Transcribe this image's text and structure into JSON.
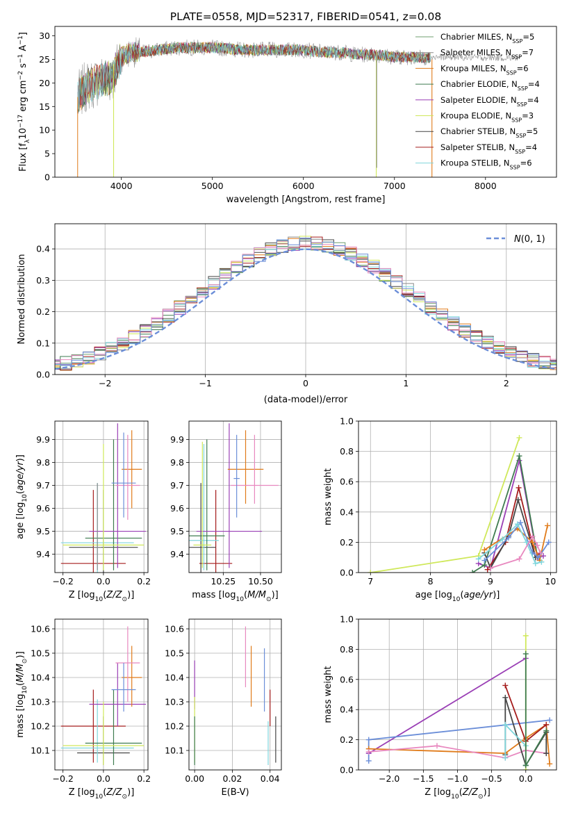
{
  "figure": {
    "title": "PLATE=0558, MJD=52317, FIBERID=0541, z=0.08"
  },
  "colors": {
    "Chabrier MILES": "#6f9f6f",
    "Salpeter MILES": "#8a8a8a",
    "Kroupa MILES": "#e07b1a",
    "Chabrier ELODIE": "#3e7b4f",
    "Salpeter ELODIE": "#9a3fb5",
    "Kroupa ELODIE": "#cfe85a",
    "Chabrier STELIB": "#444444",
    "Salpeter STELIB": "#a51c1c",
    "Kroupa STELIB": "#7fd6dc",
    "pink": "#e888bf",
    "blue": "#6b8ed8",
    "grid": "#b0b0b0"
  },
  "chart_data": [
    {
      "id": "spectrum",
      "type": "line",
      "xlabel": "wavelength [Angstrom, rest frame]",
      "ylabel": "Flux [f_λ 10^-17 erg cm^-2 s^-1 A^-1]",
      "xlim": [
        3270,
        8780
      ],
      "ylim": [
        0,
        32
      ],
      "xticks": [
        4000,
        5000,
        6000,
        7000,
        8000
      ],
      "yticks": [
        0,
        5,
        10,
        15,
        20,
        25,
        30
      ],
      "grid": false,
      "legend_position": "top-right",
      "legend": [
        {
          "name": "Chabrier MILES",
          "nssp": "5"
        },
        {
          "name": "Salpeter MILES",
          "nssp": "7"
        },
        {
          "name": "Kroupa MILES",
          "nssp": "6"
        },
        {
          "name": "Chabrier ELODIE",
          "nssp": "4"
        },
        {
          "name": "Salpeter ELODIE",
          "nssp": "4"
        },
        {
          "name": "Kroupa ELODIE",
          "nssp": "3"
        },
        {
          "name": "Chabrier STELIB",
          "nssp": "5"
        },
        {
          "name": "Salpeter STELIB",
          "nssp": "4"
        },
        {
          "name": "Kroupa STELIB",
          "nssp": "6"
        }
      ],
      "continuum": {
        "x": [
          3520,
          3600,
          3700,
          3800,
          3900,
          4000,
          4100,
          4200,
          4400,
          4600,
          4800,
          5000,
          5200,
          5400,
          5600,
          5800,
          6000,
          6200,
          6400,
          6600,
          6800,
          7000,
          7200,
          7400
        ],
        "y": [
          17,
          19,
          20,
          21,
          21,
          25.5,
          26.5,
          26.5,
          27,
          27.5,
          27.5,
          27.5,
          27.2,
          27,
          27,
          27,
          27,
          26.5,
          26.5,
          26,
          26,
          25.5,
          25.5,
          25.3
        ]
      },
      "grey_extension": {
        "x": [
          7400,
          8400
        ],
        "y": [
          25.5,
          25.3
        ]
      },
      "spikes": [
        {
          "series": "Kroupa ELODIE",
          "x": 3915,
          "y_from": 24,
          "y_to": 0
        },
        {
          "series": "Kroupa ELODIE",
          "x": 6800,
          "y_from": 27,
          "y_to": 0
        },
        {
          "series": "Salpeter MILES",
          "x": 6805,
          "y_from": 27,
          "y_to": 2
        },
        {
          "series": "Kroupa MILES",
          "x": 7412,
          "y_from": 25,
          "y_to": 0
        }
      ]
    },
    {
      "id": "residuals",
      "type": "line",
      "xlabel": "(data-model)/error",
      "ylabel": "Normed distribution",
      "xlim": [
        -2.5,
        2.5
      ],
      "ylim": [
        0,
        0.48
      ],
      "xticks": [
        -2,
        -1,
        0,
        1,
        2
      ],
      "yticks": [
        0.0,
        0.1,
        0.2,
        0.3,
        0.4
      ],
      "grid": true,
      "legend_position": "top-right",
      "legend_label": "N(0,1)",
      "gaussian": {
        "mean": 0,
        "sigma": 1
      }
    },
    {
      "id": "age_vs_Z",
      "type": "scatter",
      "xlabel": "Z [log10(Z/Z_sun)]",
      "ylabel": "age [log10(age/yr)]",
      "xlim": [
        -0.24,
        0.22
      ],
      "ylim": [
        9.32,
        9.98
      ],
      "xticks": [
        -0.2,
        0.0,
        0.2
      ],
      "yticks": [
        9.4,
        9.5,
        9.6,
        9.7,
        9.8,
        9.9
      ],
      "grid": true,
      "points": [
        {
          "series": "Salpeter STELIB",
          "x": -0.05,
          "xerr": 0.16,
          "y": 9.36,
          "ylo": 9.31,
          "yhi": 9.68
        },
        {
          "series": "Chabrier STELIB",
          "x": 0.0,
          "xerr": 0.17,
          "y": 9.43,
          "ylo": 9.32,
          "yhi": 9.68
        },
        {
          "series": "Kroupa STELIB",
          "x": -0.03,
          "xerr": 0.18,
          "y": 9.45,
          "ylo": 9.32,
          "yhi": 9.71
        },
        {
          "series": "Chabrier ELODIE",
          "x": 0.05,
          "xerr": 0.14,
          "y": 9.47,
          "ylo": 9.33,
          "yhi": 9.9
        },
        {
          "series": "Salpeter ELODIE",
          "x": 0.07,
          "xerr": 0.14,
          "y": 9.5,
          "ylo": 9.34,
          "yhi": 9.97
        },
        {
          "series": "Kroupa ELODIE",
          "x": 0.0,
          "xerr": 0.2,
          "y": 9.44,
          "ylo": 9.33,
          "yhi": 9.88
        },
        {
          "series": "Kroupa MILES",
          "x": 0.14,
          "xerr": 0.05,
          "y": 9.77,
          "ylo": 9.6,
          "yhi": 9.94
        },
        {
          "series": "pink",
          "x": 0.12,
          "xerr": 0.06,
          "y": 9.7,
          "ylo": 9.55,
          "yhi": 9.92
        },
        {
          "series": "blue",
          "x": 0.1,
          "xerr": 0.06,
          "y": 9.71,
          "ylo": 9.56,
          "yhi": 9.93
        },
        {
          "series": "Salpeter MILES",
          "x": -0.03,
          "xerr": 0.02,
          "y": 9.43,
          "ylo": 9.33,
          "yhi": 9.71
        }
      ]
    },
    {
      "id": "age_vs_mass",
      "type": "scatter",
      "xlabel": "mass [log10(M/M_sun)]",
      "ylabel": "",
      "xlim": [
        10.02,
        10.64
      ],
      "ylim": [
        9.32,
        9.98
      ],
      "xticks": [
        10.25,
        10.5
      ],
      "yticks": [
        9.4,
        9.5,
        9.6,
        9.7,
        9.8,
        9.9
      ],
      "grid": true,
      "points": [
        {
          "series": "Salpeter STELIB",
          "x": 10.2,
          "xerr": 0.11,
          "y": 9.36,
          "ylo": 9.31,
          "yhi": 9.68
        },
        {
          "series": "Chabrier STELIB",
          "x": 10.1,
          "xerr": 0.1,
          "y": 9.43,
          "ylo": 9.32,
          "yhi": 9.71
        },
        {
          "series": "Kroupa STELIB",
          "x": 10.12,
          "xerr": 0.1,
          "y": 9.46,
          "ylo": 9.33,
          "yhi": 9.88
        },
        {
          "series": "Chabrier ELODIE",
          "x": 10.14,
          "xerr": 0.12,
          "y": 9.48,
          "ylo": 9.33,
          "yhi": 9.9
        },
        {
          "series": "Salpeter ELODIE",
          "x": 10.29,
          "xerr": 0.22,
          "y": 9.5,
          "ylo": 9.34,
          "yhi": 9.97
        },
        {
          "series": "Kroupa ELODIE",
          "x": 10.11,
          "xerr": 0.06,
          "y": 9.44,
          "ylo": 9.34,
          "yhi": 9.89
        },
        {
          "series": "Kroupa MILES",
          "x": 10.4,
          "xerr": 0.12,
          "y": 9.77,
          "ylo": 9.62,
          "yhi": 9.94
        },
        {
          "series": "pink",
          "x": 10.46,
          "xerr": 0.16,
          "y": 9.7,
          "ylo": 9.62,
          "yhi": 9.92
        },
        {
          "series": "blue",
          "x": 10.34,
          "xerr": 0.02,
          "y": 9.73,
          "ylo": 9.56,
          "yhi": 9.92
        }
      ]
    },
    {
      "id": "weight_vs_age",
      "type": "line",
      "xlabel": "age [log10(age/yr)]",
      "ylabel": "mass weight",
      "xlim": [
        6.8,
        10.1
      ],
      "ylim": [
        0,
        1
      ],
      "xticks": [
        7,
        8,
        9,
        10
      ],
      "yticks": [
        0.0,
        0.2,
        0.4,
        0.6,
        0.8,
        1.0
      ],
      "grid": true,
      "series": [
        {
          "name": "Kroupa ELODIE",
          "x": [
            7.0,
            8.8,
            9.48
          ],
          "y": [
            0.0,
            0.11,
            0.89
          ]
        },
        {
          "name": "Salpeter ELODIE",
          "x": [
            8.8,
            9.0,
            9.48,
            9.78,
            9.88
          ],
          "y": [
            0.06,
            0.03,
            0.74,
            0.1,
            0.11
          ]
        },
        {
          "name": "Chabrier ELODIE",
          "x": [
            8.7,
            8.9,
            9.48,
            9.78
          ],
          "y": [
            0.0,
            0.05,
            0.77,
            0.11
          ]
        },
        {
          "name": "Salpeter STELIB",
          "x": [
            8.95,
            9.25,
            9.47,
            9.75,
            9.82
          ],
          "y": [
            0.02,
            0.2,
            0.56,
            0.1,
            0.13
          ]
        },
        {
          "name": "Chabrier STELIB",
          "x": [
            8.9,
            9.0,
            9.3,
            9.46,
            9.75
          ],
          "y": [
            0.13,
            0.03,
            0.24,
            0.48,
            0.1
          ]
        },
        {
          "name": "Kroupa MILES",
          "x": [
            8.9,
            9.45,
            9.7,
            9.82,
            9.95
          ],
          "y": [
            0.15,
            0.29,
            0.2,
            0.08,
            0.31
          ]
        },
        {
          "name": "blue",
          "x": [
            8.9,
            9.3,
            9.5,
            9.7,
            9.8,
            9.97
          ],
          "y": [
            0.08,
            0.23,
            0.33,
            0.13,
            0.1,
            0.2
          ]
        },
        {
          "name": "Kroupa STELIB",
          "x": [
            8.8,
            9.2,
            9.45,
            9.6,
            9.75,
            9.85
          ],
          "y": [
            0.09,
            0.22,
            0.32,
            0.2,
            0.06,
            0.07
          ]
        },
        {
          "name": "pink",
          "x": [
            9.0,
            9.48,
            9.7,
            9.78,
            9.83
          ],
          "y": [
            0.03,
            0.09,
            0.24,
            0.18,
            0.13
          ]
        }
      ]
    },
    {
      "id": "mass_vs_Z",
      "type": "scatter",
      "xlabel": "Z [log10(Z/Z_sun)]",
      "ylabel": "mass [log10(M/M_sun)]",
      "xlim": [
        -0.24,
        0.22
      ],
      "ylim": [
        10.02,
        10.64
      ],
      "xticks": [
        -0.2,
        0.0,
        0.2
      ],
      "yticks": [
        10.1,
        10.2,
        10.3,
        10.4,
        10.5,
        10.6
      ],
      "grid": true,
      "points": [
        {
          "series": "Salpeter STELIB",
          "x": -0.05,
          "xerr": 0.16,
          "y": 10.2,
          "ylo": 10.05,
          "yhi": 10.35
        },
        {
          "series": "Chabrier STELIB",
          "x": 0.0,
          "xerr": 0.13,
          "y": 10.09,
          "ylo": 10.04,
          "yhi": 10.24
        },
        {
          "series": "Kroupa STELIB",
          "x": -0.03,
          "xerr": 0.18,
          "y": 10.11,
          "ylo": 10.05,
          "yhi": 10.31
        },
        {
          "series": "Chabrier ELODIE",
          "x": 0.05,
          "xerr": 0.14,
          "y": 10.13,
          "ylo": 10.04,
          "yhi": 10.35
        },
        {
          "series": "Salpeter ELODIE",
          "x": 0.07,
          "xerr": 0.14,
          "y": 10.29,
          "ylo": 10.2,
          "yhi": 10.46
        },
        {
          "series": "Kroupa ELODIE",
          "x": 0.0,
          "xerr": 0.2,
          "y": 10.12,
          "ylo": 10.04,
          "yhi": 10.3
        },
        {
          "series": "Kroupa MILES",
          "x": 0.14,
          "xerr": 0.05,
          "y": 10.4,
          "ylo": 10.28,
          "yhi": 10.53
        },
        {
          "series": "pink",
          "x": 0.12,
          "xerr": 0.06,
          "y": 10.46,
          "ylo": 10.3,
          "yhi": 10.61
        },
        {
          "series": "blue",
          "x": 0.1,
          "xerr": 0.06,
          "y": 10.35,
          "ylo": 10.26,
          "yhi": 10.46
        }
      ]
    },
    {
      "id": "mass_vs_ebv",
      "type": "scatter",
      "xlabel": "E(B-V)",
      "ylabel": "",
      "xlim": [
        -0.003,
        0.046
      ],
      "ylim": [
        10.02,
        10.64
      ],
      "xticks": [
        0.0,
        0.02,
        0.04
      ],
      "yticks": [
        10.1,
        10.2,
        10.3,
        10.4,
        10.5,
        10.6
      ],
      "grid": true,
      "points": [
        {
          "series": "Salpeter ELODIE",
          "x": 0.0,
          "ylo": 10.27,
          "yhi": 10.47
        },
        {
          "series": "Kroupa ELODIE",
          "x": 0.0,
          "ylo": 10.05,
          "yhi": 10.32
        },
        {
          "series": "Chabrier ELODIE",
          "x": 0.0,
          "ylo": 10.04,
          "yhi": 10.24
        },
        {
          "series": "pink",
          "x": 0.027,
          "ylo": 10.36,
          "yhi": 10.61
        },
        {
          "series": "Kroupa MILES",
          "x": 0.03,
          "ylo": 10.28,
          "yhi": 10.53
        },
        {
          "series": "blue",
          "x": 0.037,
          "ylo": 10.26,
          "yhi": 10.52
        },
        {
          "series": "Salpeter STELIB",
          "x": 0.04,
          "ylo": 10.2,
          "yhi": 10.35
        },
        {
          "series": "Chabrier STELIB",
          "x": 0.043,
          "ylo": 10.05,
          "yhi": 10.24
        },
        {
          "series": "Kroupa STELIB",
          "x": 0.039,
          "ylo": 10.04,
          "yhi": 10.22
        }
      ]
    },
    {
      "id": "weight_vs_Z",
      "type": "line",
      "xlabel": "Z [log10(Z/Z_sun)]",
      "ylabel": "mass weight",
      "xlim": [
        -2.45,
        0.45
      ],
      "ylim": [
        0,
        1
      ],
      "xticks": [
        -2.0,
        -1.5,
        -1.0,
        -0.5,
        0.0
      ],
      "yticks": [
        0.0,
        0.2,
        0.4,
        0.6,
        0.8,
        1.0
      ],
      "grid": true,
      "series": [
        {
          "name": "Salpeter ELODIE",
          "x": [
            -2.3,
            0.0
          ],
          "y": [
            0.11,
            0.74
          ]
        },
        {
          "name": "blue",
          "x": [
            -2.3,
            -2.3,
            0.35
          ],
          "y": [
            0.06,
            0.2,
            0.33
          ]
        },
        {
          "name": "Kroupa MILES",
          "x": [
            -2.3,
            -0.3,
            0.0,
            0.3,
            0.35
          ],
          "y": [
            0.14,
            0.11,
            0.21,
            0.3,
            0.04
          ]
        },
        {
          "name": "pink",
          "x": [
            -2.3,
            -1.3,
            -0.3,
            0.0,
            0.3
          ],
          "y": [
            0.12,
            0.16,
            0.08,
            0.13,
            0.11
          ]
        },
        {
          "name": "Salpeter STELIB",
          "x": [
            -0.3,
            0.0,
            0.3
          ],
          "y": [
            0.56,
            0.19,
            0.3
          ]
        },
        {
          "name": "Chabrier STELIB",
          "x": [
            -0.3,
            -0.3,
            0.0,
            0.3,
            0.3
          ],
          "y": [
            0.1,
            0.48,
            0.03,
            0.25,
            0.11
          ]
        },
        {
          "name": "Kroupa STELIB",
          "x": [
            -0.3,
            -0.3,
            0.0,
            0.0
          ],
          "y": [
            0.08,
            0.3,
            0.16,
            0.03
          ]
        },
        {
          "name": "Kroupa ELODIE",
          "x": [
            0.0,
            0.0
          ],
          "y": [
            0.0,
            0.89
          ]
        },
        {
          "name": "Chabrier ELODIE",
          "x": [
            0.0,
            0.0,
            0.3
          ],
          "y": [
            0.77,
            0.03,
            0.26
          ]
        }
      ]
    }
  ]
}
